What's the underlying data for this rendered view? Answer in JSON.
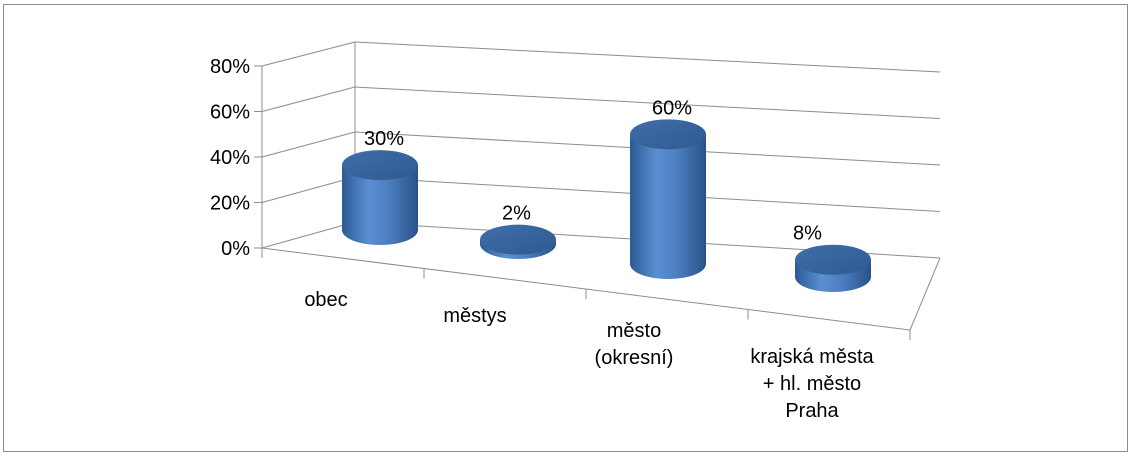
{
  "chart_data": {
    "type": "bar",
    "style": "3d-cylinder",
    "categories": [
      [
        "obec"
      ],
      [
        "městys"
      ],
      [
        "město",
        "(okresní)"
      ],
      [
        "krajská města",
        "+ hl. město",
        "Praha"
      ]
    ],
    "values": [
      30,
      2,
      60,
      8
    ],
    "data_labels": [
      "30%",
      "2%",
      "60%",
      "8%"
    ],
    "ylim": [
      0,
      80
    ],
    "yticks": [
      "0%",
      "20%",
      "40%",
      "60%",
      "80%"
    ],
    "grid": true,
    "legend": "none",
    "colors": {
      "bar": "#4a7ebf",
      "bar_dark": "#2f5b93",
      "bar_top": "#3a66a0",
      "grid": "#8c8c8c"
    }
  }
}
